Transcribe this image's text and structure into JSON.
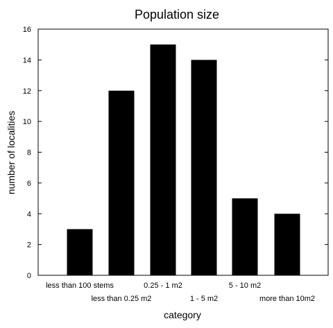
{
  "chart_data": {
    "type": "bar",
    "title": "Population size",
    "xlabel": "category",
    "ylabel": "number of localities",
    "categories": [
      "less than 100 stems",
      "less than 0.25 m2",
      "0.25 - 1 m2",
      "1 - 5 m2",
      "5 - 10 m2",
      "more than 10m2"
    ],
    "values": [
      3,
      12,
      15,
      14,
      5,
      4
    ],
    "ylim": [
      0,
      16
    ],
    "yticks": [
      "0",
      "2",
      "4",
      "6",
      "8",
      "10",
      "12",
      "14",
      "16"
    ],
    "grid": false,
    "bar_color": "#000000"
  }
}
